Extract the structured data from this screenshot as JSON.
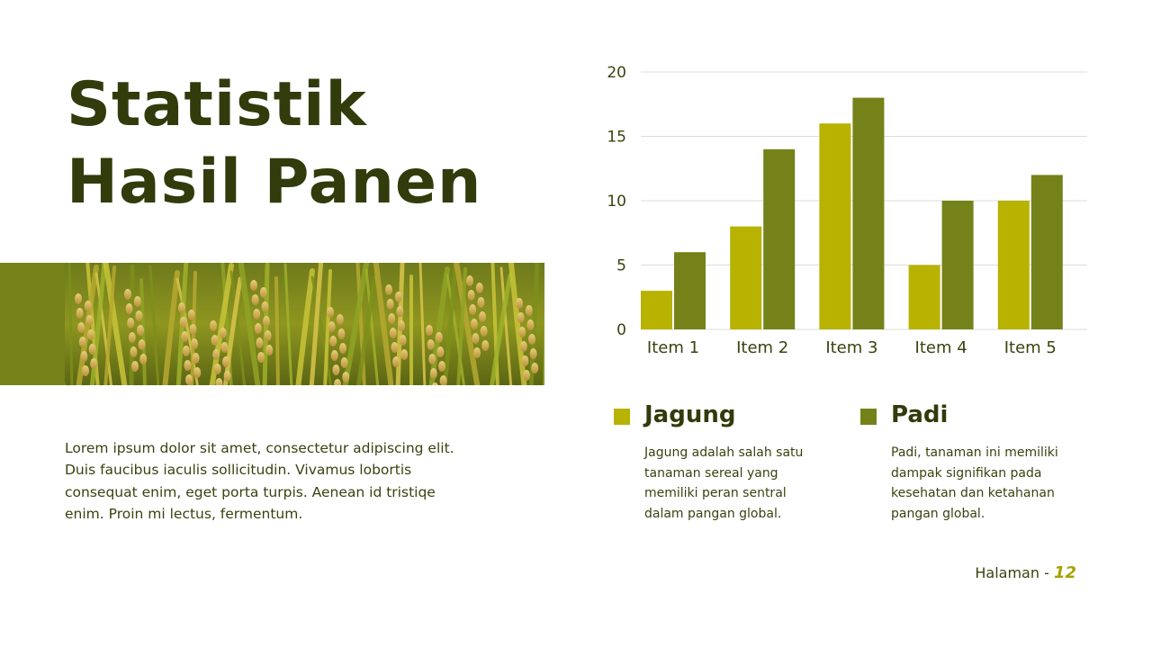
{
  "title": {
    "line1": "Statistik",
    "line2": "Hasil Panen"
  },
  "colors": {
    "dark_text": "#323b0b",
    "jagung": "#b8b200",
    "padi": "#758219",
    "accent_block": "#758219",
    "page_number": "#a8a200"
  },
  "image": {
    "subject": "rice-field-photo"
  },
  "body_text": "Lorem ipsum dolor sit amet, consectetur adipiscing elit. Duis faucibus iaculis sollicitudin. Vivamus lobortis consequat enim, eget porta turpis. Aenean id tristiqe enim. Proin mi lectus, fermentum.",
  "chart_data": {
    "type": "bar",
    "categories": [
      "Item 1",
      "Item 2",
      "Item 3",
      "Item 4",
      "Item 5"
    ],
    "series": [
      {
        "name": "Jagung",
        "values": [
          3,
          8,
          16,
          5,
          10
        ]
      },
      {
        "name": "Padi",
        "values": [
          6,
          14,
          18,
          10,
          12
        ]
      }
    ],
    "ylim": [
      0,
      20
    ],
    "yticks": [
      0,
      5,
      10,
      15,
      20
    ],
    "ytick_labels": [
      "0",
      "5",
      "10",
      "15",
      "20"
    ],
    "grid": true,
    "legend": "below"
  },
  "legend": [
    {
      "name": "Jagung",
      "description": "Jagung adalah salah satu tanaman sereal yang memiliki peran sentral dalam pangan global."
    },
    {
      "name": "Padi",
      "description": "Padi, tanaman ini memiliki dampak signifikan pada kesehatan dan ketahanan pangan global."
    }
  ],
  "footer": {
    "label": "Halaman - ",
    "page_number": "12"
  }
}
